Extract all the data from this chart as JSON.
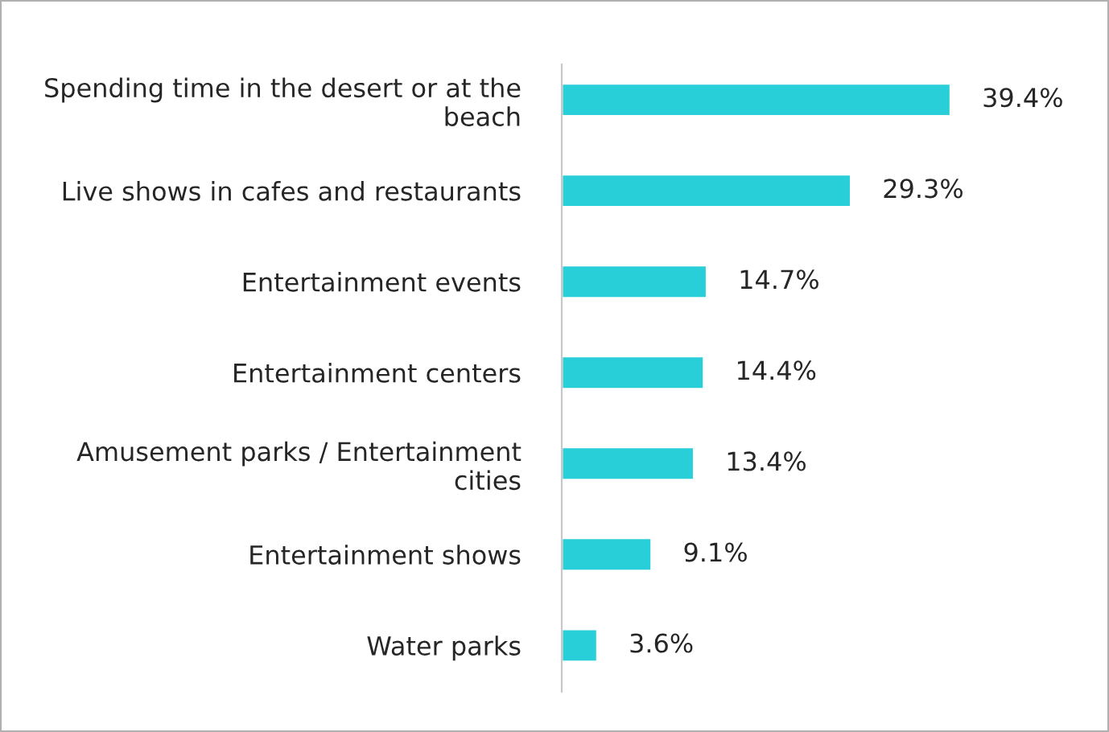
{
  "chart_data": {
    "type": "bar",
    "orientation": "horizontal",
    "categories": [
      "Spending time in the desert or at the\nbeach",
      "Live shows in cafes and restaurants",
      "Entertainment events",
      "Entertainment centers",
      "Amusement parks / Entertainment\ncities",
      "Entertainment shows",
      "Water parks"
    ],
    "values": [
      39.4,
      29.3,
      14.7,
      14.4,
      13.4,
      9.1,
      3.6
    ],
    "value_labels": [
      "39.4%",
      "29.3%",
      "14.7%",
      "14.4%",
      "13.4%",
      "9.1%",
      "3.6%"
    ],
    "color": "#29cfd8",
    "grid": false,
    "legend": false
  }
}
